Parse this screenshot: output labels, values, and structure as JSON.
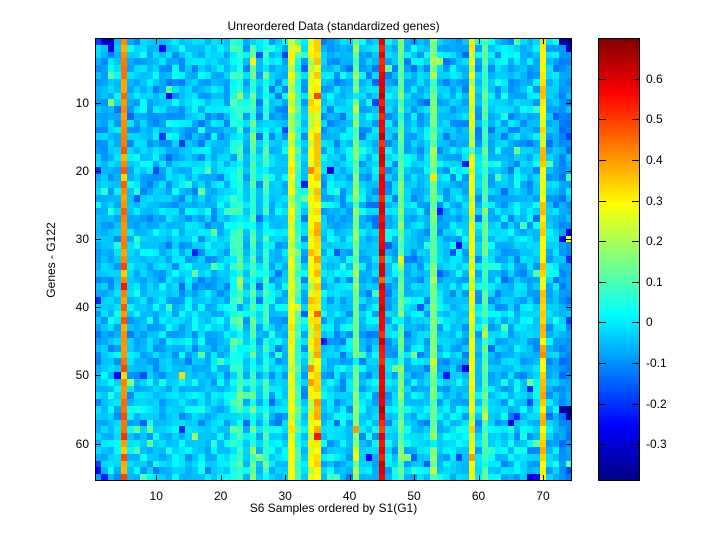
{
  "chart_data": {
    "type": "heatmap",
    "title": "Unreordered Data (standardized genes)",
    "xlabel": "S6 Samples ordered by S1(G1)",
    "ylabel": "Genes - G122",
    "x_ticks": [
      10,
      20,
      30,
      40,
      50,
      60,
      70
    ],
    "y_ticks": [
      10,
      20,
      30,
      40,
      50,
      60
    ],
    "colorbar_ticks": [
      0.6,
      0.5,
      0.4,
      0.3,
      0.2,
      0.1,
      0,
      -0.1,
      -0.2,
      -0.3
    ],
    "n_rows": 65,
    "n_cols": 74,
    "colormap": "jet",
    "value_range": [
      -0.39,
      0.7
    ],
    "grid": "off",
    "legend": "none",
    "colorbar_position": "right",
    "render": {
      "seed": 122,
      "background_value": -0.045,
      "noise_amp": 0.09,
      "row_noise_amp": 0.028,
      "speck_prob": 0.05,
      "speck_extra_min": 0.05,
      "speck_extra_max": 0.17
    },
    "stripe_columns": [
      {
        "col": 1,
        "base": -0.07,
        "amp": 0.06
      },
      {
        "col": 2,
        "base": -0.06,
        "amp": 0.06
      },
      {
        "col": 5,
        "base": 0.42,
        "amp": 0.1
      },
      {
        "col": 22,
        "base": 0.04,
        "amp": 0.08
      },
      {
        "col": 23,
        "base": 0.07,
        "amp": 0.08
      },
      {
        "col": 25,
        "base": 0.09,
        "amp": 0.09
      },
      {
        "col": 27,
        "base": 0.06,
        "amp": 0.08
      },
      {
        "col": 31,
        "base": 0.26,
        "amp": 0.07
      },
      {
        "col": 32,
        "base": 0.09,
        "amp": 0.06
      },
      {
        "col": 34,
        "base": 0.26,
        "amp": 0.07
      },
      {
        "col": 35,
        "base": 0.33,
        "amp": 0.08
      },
      {
        "col": 41,
        "base": 0.15,
        "amp": 0.06
      },
      {
        "col": 45,
        "base": 0.57,
        "amp": 0.07
      },
      {
        "col": 48,
        "base": 0.13,
        "amp": 0.06
      },
      {
        "col": 53,
        "base": 0.15,
        "amp": 0.07
      },
      {
        "col": 59,
        "base": 0.27,
        "amp": 0.07
      },
      {
        "col": 61,
        "base": 0.1,
        "amp": 0.06
      },
      {
        "col": 70,
        "base": 0.32,
        "amp": 0.08
      },
      {
        "col": 73,
        "base": -0.09,
        "amp": 0.06
      },
      {
        "col": 74,
        "base": -0.1,
        "amp": 0.07
      }
    ],
    "cell_overrides": [
      [
        1,
        2,
        -0.3
      ],
      [
        1,
        3,
        -0.33
      ],
      [
        2,
        3,
        -0.28
      ],
      [
        1,
        73,
        -0.36
      ],
      [
        1,
        74,
        -0.38
      ],
      [
        2,
        74,
        -0.3
      ],
      [
        29,
        74,
        -0.28
      ],
      [
        30,
        74,
        0.28
      ],
      [
        55,
        73,
        -0.36
      ],
      [
        55,
        74,
        -0.38
      ],
      [
        56,
        74,
        -0.34
      ],
      [
        63,
        1,
        -0.18
      ],
      [
        64,
        1,
        -0.25
      ],
      [
        65,
        2,
        -0.22
      ],
      [
        20,
        34,
        0.42
      ],
      [
        41,
        35,
        0.46
      ],
      [
        49,
        34,
        0.42
      ],
      [
        50,
        14,
        0.33
      ],
      [
        58,
        41,
        0.4
      ],
      [
        62,
        59,
        0.4
      ],
      [
        47,
        70,
        0.42
      ],
      [
        63,
        74,
        0.12
      ],
      [
        65,
        68,
        -0.3
      ],
      [
        65,
        69,
        -0.25
      ]
    ]
  }
}
